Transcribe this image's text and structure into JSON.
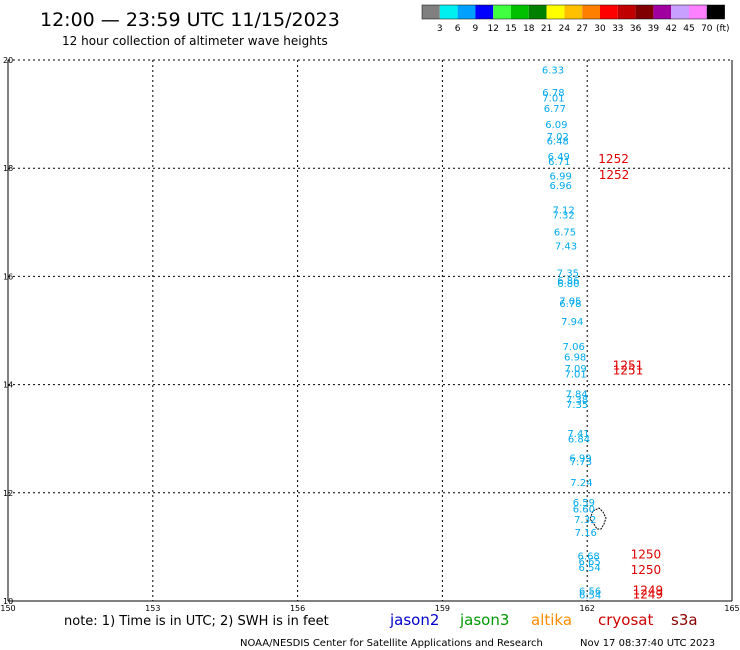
{
  "header": {
    "title": "12:00 — 23:59 UTC 11/15/2023",
    "subtitle": "12 hour collection of altimeter wave heights"
  },
  "colorbar": {
    "unit": "(ft)",
    "colors": [
      "#808080",
      "#00f0f0",
      "#00a0ff",
      "#0000ff",
      "#40ff40",
      "#00c000",
      "#008000",
      "#ffff00",
      "#ffc000",
      "#ff8000",
      "#ff0000",
      "#c00000",
      "#800000",
      "#a000a0",
      "#c8a0ff",
      "#ff80ff",
      "#000000"
    ],
    "labels": [
      "3",
      "6",
      "9",
      "12",
      "15",
      "18",
      "21",
      "24",
      "27",
      "30",
      "33",
      "36",
      "39",
      "42",
      "45",
      "70"
    ]
  },
  "footer": {
    "note": "note:  1) Time is in UTC;  2) SWH is in feet",
    "credit": "NOAA/NESDIS Center for Satellite Applications and Research",
    "timestamp": "Nov 17 08:37:40 UTC 2023"
  },
  "chart_data": {
    "type": "scatter",
    "title": "12:00 — 23:59 UTC 11/15/2023",
    "subtitle": "12 hour collection of altimeter wave heights",
    "xlim": [
      150,
      165
    ],
    "ylim": [
      10,
      20
    ],
    "x_ticks": [
      "150",
      "153",
      "156",
      "159",
      "162",
      "165"
    ],
    "y_ticks": [
      "10",
      "12",
      "14",
      "16",
      "18",
      "20"
    ],
    "grid": true,
    "legend": [
      {
        "name": "jason2",
        "color": "#0000cc"
      },
      {
        "name": "jason3",
        "color": "#009900"
      },
      {
        "name": "altika",
        "color": "#ff8c00"
      },
      {
        "name": "cryosat",
        "color": "#cc0000"
      },
      {
        "name": "s3a",
        "color": "#880000"
      }
    ],
    "swh_color": "#00aaee",
    "pass_color": "#e00000",
    "swh_points": [
      {
        "lon": 161.06,
        "lat": 19.75,
        "label": "6.33"
      },
      {
        "lon": 161.07,
        "lat": 19.33,
        "label": "6.78"
      },
      {
        "lon": 161.07,
        "lat": 19.23,
        "label": "7.01"
      },
      {
        "lon": 161.1,
        "lat": 19.04,
        "label": "6.77"
      },
      {
        "lon": 161.13,
        "lat": 18.74,
        "label": "6.09"
      },
      {
        "lon": 161.16,
        "lat": 18.52,
        "label": "7.02"
      },
      {
        "lon": 161.16,
        "lat": 18.44,
        "label": "6.48"
      },
      {
        "lon": 161.18,
        "lat": 18.15,
        "label": "6.49"
      },
      {
        "lon": 161.19,
        "lat": 18.06,
        "label": "6.71"
      },
      {
        "lon": 161.22,
        "lat": 17.79,
        "label": "6.99"
      },
      {
        "lon": 161.22,
        "lat": 17.62,
        "label": "6.96"
      },
      {
        "lon": 161.28,
        "lat": 17.16,
        "label": "7.12"
      },
      {
        "lon": 161.28,
        "lat": 17.07,
        "label": "7.32"
      },
      {
        "lon": 161.31,
        "lat": 16.76,
        "label": "6.75"
      },
      {
        "lon": 161.33,
        "lat": 16.5,
        "label": "7.43"
      },
      {
        "lon": 161.37,
        "lat": 16.0,
        "label": "7.35"
      },
      {
        "lon": 161.38,
        "lat": 15.86,
        "label": "6.86"
      },
      {
        "lon": 161.38,
        "lat": 15.8,
        "label": "6.80"
      },
      {
        "lon": 161.42,
        "lat": 15.48,
        "label": "7.05"
      },
      {
        "lon": 161.42,
        "lat": 15.43,
        "label": "6.78"
      },
      {
        "lon": 161.46,
        "lat": 15.1,
        "label": "7.94"
      },
      {
        "lon": 161.49,
        "lat": 14.64,
        "label": "7.06"
      },
      {
        "lon": 161.52,
        "lat": 14.45,
        "label": "6.98"
      },
      {
        "lon": 161.53,
        "lat": 14.23,
        "label": "7.09"
      },
      {
        "lon": 161.53,
        "lat": 14.13,
        "label": "7.01"
      },
      {
        "lon": 161.55,
        "lat": 13.76,
        "label": "7.84"
      },
      {
        "lon": 161.56,
        "lat": 13.66,
        "label": "7.38"
      },
      {
        "lon": 161.56,
        "lat": 13.57,
        "label": "7.35"
      },
      {
        "lon": 161.59,
        "lat": 13.03,
        "label": "7.41"
      },
      {
        "lon": 161.6,
        "lat": 12.93,
        "label": "6.84"
      },
      {
        "lon": 161.63,
        "lat": 12.58,
        "label": "6.99"
      },
      {
        "lon": 161.64,
        "lat": 12.51,
        "label": "7.73"
      },
      {
        "lon": 161.65,
        "lat": 12.13,
        "label": "7.24"
      },
      {
        "lon": 161.7,
        "lat": 11.76,
        "label": "6.59"
      },
      {
        "lon": 161.7,
        "lat": 11.64,
        "label": "6.60"
      },
      {
        "lon": 161.73,
        "lat": 11.44,
        "label": "7.32"
      },
      {
        "lon": 161.74,
        "lat": 11.2,
        "label": "7.16"
      },
      {
        "lon": 161.8,
        "lat": 10.77,
        "label": "6.68"
      },
      {
        "lon": 161.82,
        "lat": 10.67,
        "label": "6.65"
      },
      {
        "lon": 161.82,
        "lat": 10.55,
        "label": "6.54"
      },
      {
        "lon": 161.83,
        "lat": 10.12,
        "label": "6.56"
      },
      {
        "lon": 161.83,
        "lat": 10.05,
        "label": "6.54"
      }
    ],
    "pass_labels": [
      {
        "lon": 162.23,
        "lat": 18.1,
        "label": "1252"
      },
      {
        "lon": 162.24,
        "lat": 17.8,
        "label": "1252"
      },
      {
        "lon": 162.53,
        "lat": 14.28,
        "label": "1251"
      },
      {
        "lon": 162.53,
        "lat": 14.19,
        "label": "1251"
      },
      {
        "lon": 162.9,
        "lat": 10.79,
        "label": "1250"
      },
      {
        "lon": 162.9,
        "lat": 10.5,
        "label": "1250"
      },
      {
        "lon": 162.94,
        "lat": 10.12,
        "label": "1249"
      },
      {
        "lon": 162.94,
        "lat": 10.05,
        "label": "1249"
      }
    ]
  }
}
